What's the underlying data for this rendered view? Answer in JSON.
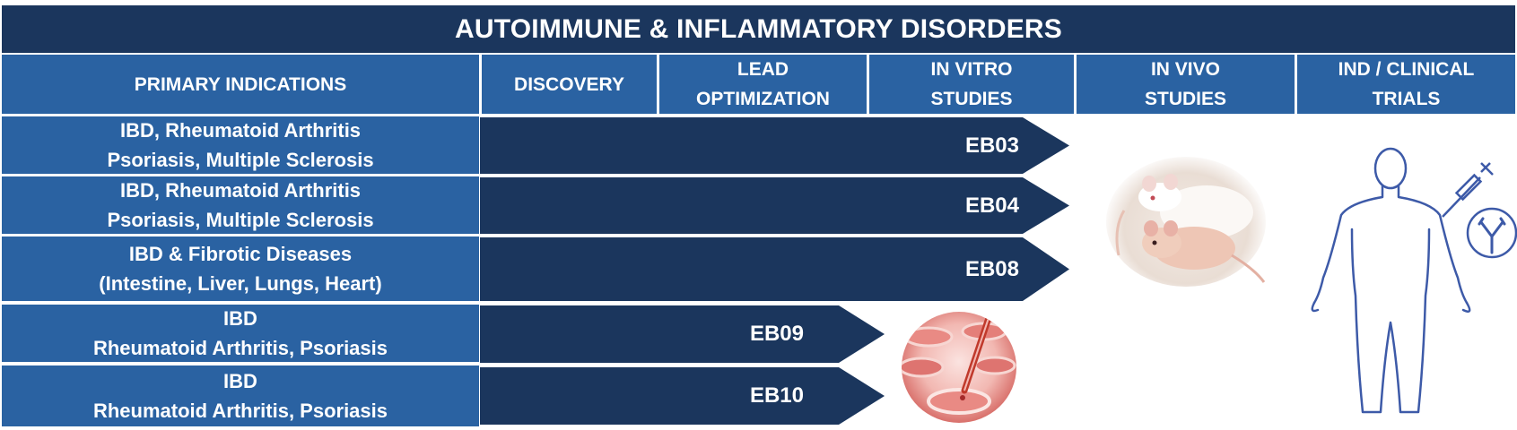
{
  "title": "AUTOIMMUNE & INFLAMMATORY DISORDERS",
  "headers": {
    "primary": "PRIMARY INDICATIONS",
    "discovery": "DISCOVERY",
    "lead": "LEAD\nOPTIMIZATION",
    "invitro": "IN VITRO\nSTUDIES",
    "invivo": "IN VIVO\nSTUDIES",
    "ind": "IND / CLINICAL\nTRIALS"
  },
  "rows": [
    {
      "indication": "IBD, Rheumatoid Arthritis\nPsoriasis, Multiple Sclerosis",
      "program": "EB03",
      "stage": "IN VITRO STUDIES"
    },
    {
      "indication": "IBD, Rheumatoid Arthritis\nPsoriasis, Multiple Sclerosis",
      "program": "EB04",
      "stage": "IN VITRO STUDIES"
    },
    {
      "indication": "IBD & Fibrotic Diseases\n(Intestine, Liver, Lungs, Heart)",
      "program": "EB08",
      "stage": "IN VITRO STUDIES"
    },
    {
      "indication": "IBD\nRheumatoid Arthritis, Psoriasis",
      "program": "EB09",
      "stage": "LEAD OPTIMIZATION"
    },
    {
      "indication": "IBD\nRheumatoid Arthritis, Psoriasis",
      "program": "EB10",
      "stage": "LEAD OPTIMIZATION"
    }
  ],
  "images": {
    "mice": "mice-photo",
    "dish": "petri-dish-photo",
    "human": "human-injection-icon",
    "antibody": "antibody-icon"
  },
  "colors": {
    "title_bg": "#1b365d",
    "header_bg": "#2a62a2",
    "arrow_bg": "#1b365d",
    "outline": "#3d5aa8"
  }
}
